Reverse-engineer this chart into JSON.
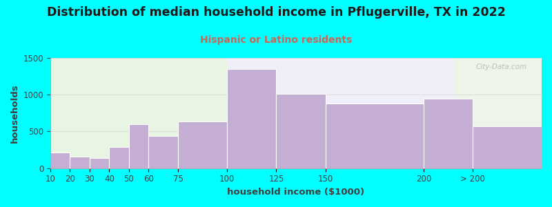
{
  "title": "Distribution of median household income in Pflugerville, TX in 2022",
  "subtitle": "Hispanic or Latino residents",
  "xlabel": "household income ($1000)",
  "ylabel": "households",
  "background_color": "#00FFFF",
  "bar_color": "#c4aed4",
  "bar_edge_color": "#ffffff",
  "subtitle_color": "#cc6655",
  "title_color": "#1a1a1a",
  "tick_color": "#404040",
  "watermark_text": "City-Data.com",
  "watermark_color": "#b0b8b0",
  "edges": [
    10,
    20,
    30,
    40,
    50,
    60,
    75,
    100,
    125,
    150,
    200,
    225,
    260
  ],
  "values": [
    210,
    155,
    140,
    285,
    600,
    440,
    640,
    1350,
    1010,
    880,
    950,
    570
  ],
  "tick_positions": [
    10,
    20,
    30,
    40,
    50,
    60,
    75,
    100,
    125,
    150,
    200,
    225
  ],
  "tick_labels": [
    "10",
    "20",
    "30",
    "40",
    "50",
    "60",
    "75",
    "100",
    "125",
    "150",
    "200",
    "> 200"
  ],
  "ylim": [
    0,
    1500
  ],
  "yticks": [
    0,
    500,
    1000,
    1500
  ],
  "title_fontsize": 12.5,
  "subtitle_fontsize": 10,
  "axis_label_fontsize": 9.5,
  "tick_fontsize": 8.5,
  "bg_left_color": "#e8f5e2",
  "bg_right_color": "#f0eef8",
  "bg_far_right_color": "#edf5e8"
}
